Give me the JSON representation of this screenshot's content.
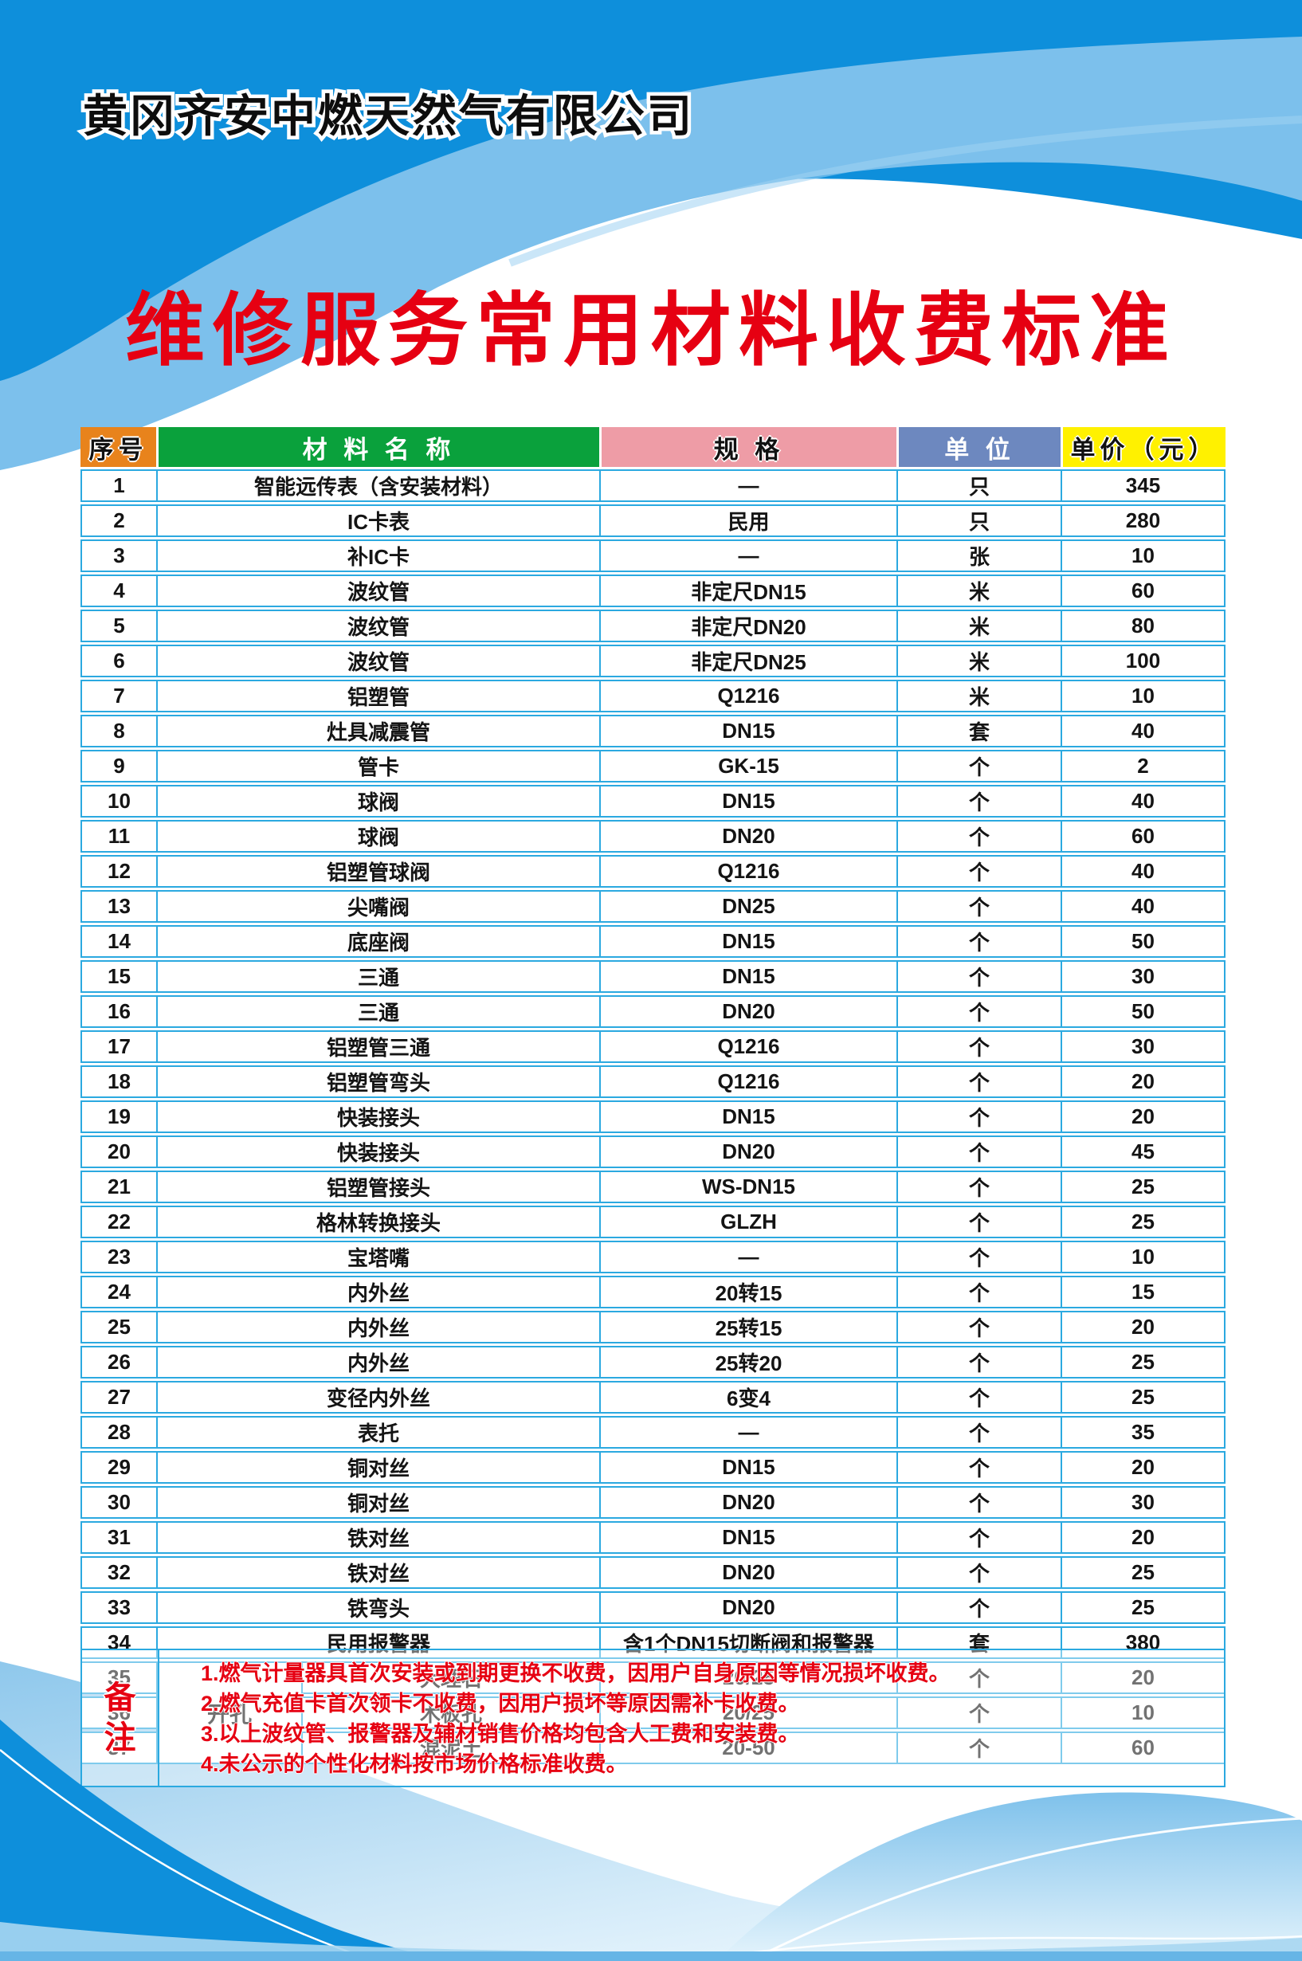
{
  "company": "黄冈齐安中燃天然气有限公司",
  "title": "维修服务常用材料收费标准",
  "colors": {
    "header_blue": "#0e8fdb",
    "light_band_blue": "#7cc0ec",
    "table_border": "#2ba9e0",
    "col_no_bg": "#e8831c",
    "col_name_bg": "#0aa13c",
    "col_spec_bg": "#ee9ca6",
    "col_unit_bg": "#6d88bf",
    "col_price_bg": "#fff100",
    "title_red": "#e60012"
  },
  "table": {
    "headers": {
      "no": "序号",
      "name": "材 料 名 称",
      "spec": "规 格",
      "unit": "单 位",
      "price": "单价（元）"
    },
    "rows": [
      {
        "no": "1",
        "name": "智能远传表（含安装材料）",
        "spec": "—",
        "unit": "只",
        "price": "345"
      },
      {
        "no": "2",
        "name": "IC卡表",
        "spec": "民用",
        "unit": "只",
        "price": "280"
      },
      {
        "no": "3",
        "name": "补IC卡",
        "spec": "—",
        "unit": "张",
        "price": "10"
      },
      {
        "no": "4",
        "name": "波纹管",
        "spec": "非定尺DN15",
        "unit": "米",
        "price": "60"
      },
      {
        "no": "5",
        "name": "波纹管",
        "spec": "非定尺DN20",
        "unit": "米",
        "price": "80"
      },
      {
        "no": "6",
        "name": "波纹管",
        "spec": "非定尺DN25",
        "unit": "米",
        "price": "100"
      },
      {
        "no": "7",
        "name": "铝塑管",
        "spec": "Q1216",
        "unit": "米",
        "price": "10"
      },
      {
        "no": "8",
        "name": "灶具减震管",
        "spec": "DN15",
        "unit": "套",
        "price": "40"
      },
      {
        "no": "9",
        "name": "管卡",
        "spec": "GK-15",
        "unit": "个",
        "price": "2"
      },
      {
        "no": "10",
        "name": "球阀",
        "spec": "DN15",
        "unit": "个",
        "price": "40"
      },
      {
        "no": "11",
        "name": "球阀",
        "spec": "DN20",
        "unit": "个",
        "price": "60"
      },
      {
        "no": "12",
        "name": "铝塑管球阀",
        "spec": "Q1216",
        "unit": "个",
        "price": "40"
      },
      {
        "no": "13",
        "name": "尖嘴阀",
        "spec": "DN25",
        "unit": "个",
        "price": "40"
      },
      {
        "no": "14",
        "name": "底座阀",
        "spec": "DN15",
        "unit": "个",
        "price": "50"
      },
      {
        "no": "15",
        "name": "三通",
        "spec": "DN15",
        "unit": "个",
        "price": "30"
      },
      {
        "no": "16",
        "name": "三通",
        "spec": "DN20",
        "unit": "个",
        "price": "50"
      },
      {
        "no": "17",
        "name": "铝塑管三通",
        "spec": "Q1216",
        "unit": "个",
        "price": "30"
      },
      {
        "no": "18",
        "name": "铝塑管弯头",
        "spec": "Q1216",
        "unit": "个",
        "price": "20"
      },
      {
        "no": "19",
        "name": "快装接头",
        "spec": "DN15",
        "unit": "个",
        "price": "20"
      },
      {
        "no": "20",
        "name": "快装接头",
        "spec": "DN20",
        "unit": "个",
        "price": "45"
      },
      {
        "no": "21",
        "name": "铝塑管接头",
        "spec": "WS-DN15",
        "unit": "个",
        "price": "25"
      },
      {
        "no": "22",
        "name": "格林转换接头",
        "spec": "GLZH",
        "unit": "个",
        "price": "25"
      },
      {
        "no": "23",
        "name": "宝塔嘴",
        "spec": "—",
        "unit": "个",
        "price": "10"
      },
      {
        "no": "24",
        "name": "内外丝",
        "spec": "20转15",
        "unit": "个",
        "price": "15"
      },
      {
        "no": "25",
        "name": "内外丝",
        "spec": "25转15",
        "unit": "个",
        "price": "20"
      },
      {
        "no": "26",
        "name": "内外丝",
        "spec": "25转20",
        "unit": "个",
        "price": "25"
      },
      {
        "no": "27",
        "name": "变径内外丝",
        "spec": "6变4",
        "unit": "个",
        "price": "25"
      },
      {
        "no": "28",
        "name": "表托",
        "spec": "—",
        "unit": "个",
        "price": "35"
      },
      {
        "no": "29",
        "name": "铜对丝",
        "spec": "DN15",
        "unit": "个",
        "price": "20"
      },
      {
        "no": "30",
        "name": "铜对丝",
        "spec": "DN20",
        "unit": "个",
        "price": "30"
      },
      {
        "no": "31",
        "name": "铁对丝",
        "spec": "DN15",
        "unit": "个",
        "price": "20"
      },
      {
        "no": "32",
        "name": "铁对丝",
        "spec": "DN20",
        "unit": "个",
        "price": "25"
      },
      {
        "no": "33",
        "name": "铁弯头",
        "spec": "DN20",
        "unit": "个",
        "price": "25"
      },
      {
        "no": "34",
        "name": "民用报警器",
        "spec": "含1个DN15切断阀和报警器",
        "unit": "套",
        "price": "380"
      },
      {
        "no": "35",
        "group": "开孔",
        "group_span": 3,
        "name": "大理石",
        "spec": "20/25",
        "unit": "个",
        "price": "20"
      },
      {
        "no": "36",
        "in_group": true,
        "name": "木板孔",
        "spec": "20/25",
        "unit": "个",
        "price": "10"
      },
      {
        "no": "37",
        "in_group": true,
        "name": "混泥土",
        "spec": "20-50",
        "unit": "个",
        "price": "60"
      }
    ]
  },
  "notes": {
    "label_chars": [
      "备",
      "注"
    ],
    "items": [
      "1.燃气计量器具首次安装或到期更换不收费，因用户自身原因等情况损坏收费。",
      "2.燃气充值卡首次领卡不收费，因用户损坏等原因需补卡收费。",
      "3.以上波纹管、报警器及辅材销售价格均包含人工费和安装费。",
      "4.未公示的个性化材料按市场价格标准收费。"
    ]
  }
}
